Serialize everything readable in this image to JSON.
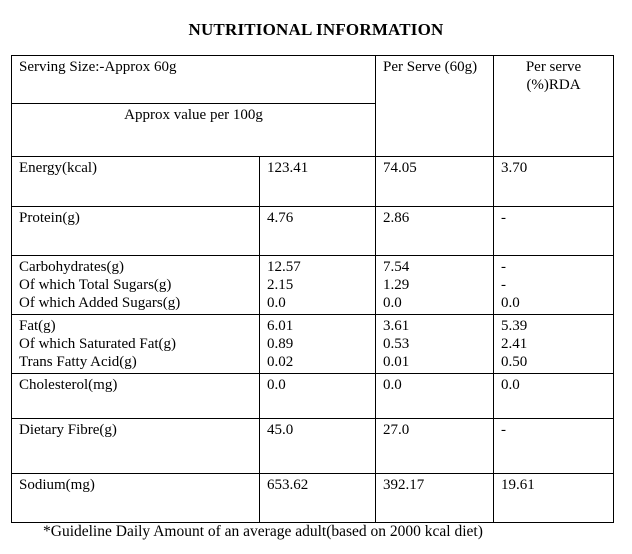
{
  "title": "NUTRITIONAL INFORMATION",
  "footer": "*Guideline Daily Amount of an average adult(based on 2000 kcal diet)",
  "colors": {
    "text": "#000000",
    "background": "#ffffff",
    "border": "#000000"
  },
  "table": {
    "header": {
      "serving_size": "Serving Size:-Approx 60g",
      "approx_value": "Approx value per 100g",
      "per_serve": "Per Serve (60g)",
      "rda_line1": "Per serve",
      "rda_line2": "(%)RDA"
    },
    "rows": [
      {
        "cells": [
          [
            "Energy(kcal)"
          ],
          [
            "123.41"
          ],
          [
            "74.05"
          ],
          [
            "3.70"
          ]
        ]
      },
      {
        "cells": [
          [
            "Protein(g)"
          ],
          [
            "4.76"
          ],
          [
            "2.86"
          ],
          [
            "-"
          ]
        ]
      },
      {
        "cells": [
          [
            "Carbohydrates(g)",
            "Of which Total Sugars(g)",
            "Of which Added Sugars(g)"
          ],
          [
            "12.57",
            "2.15",
            "0.0"
          ],
          [
            "7.54",
            "1.29",
            "0.0"
          ],
          [
            "-",
            "-",
            "0.0"
          ]
        ]
      },
      {
        "cells": [
          [
            "Fat(g)",
            "Of which Saturated Fat(g)",
            "Trans Fatty Acid(g)"
          ],
          [
            "6.01",
            "0.89",
            "0.02"
          ],
          [
            "3.61",
            "0.53",
            "0.01"
          ],
          [
            "5.39",
            "2.41",
            "0.50"
          ]
        ]
      },
      {
        "cells": [
          [
            "Cholesterol(mg)"
          ],
          [
            "0.0"
          ],
          [
            "0.0"
          ],
          [
            "0.0"
          ]
        ]
      },
      {
        "cells": [
          [
            "Dietary Fibre(g)"
          ],
          [
            "45.0"
          ],
          [
            "27.0"
          ],
          [
            "-"
          ]
        ]
      },
      {
        "cells": [
          [
            "Sodium(mg)"
          ],
          [
            "653.62"
          ],
          [
            "392.17"
          ],
          [
            "19.61"
          ]
        ]
      }
    ]
  }
}
